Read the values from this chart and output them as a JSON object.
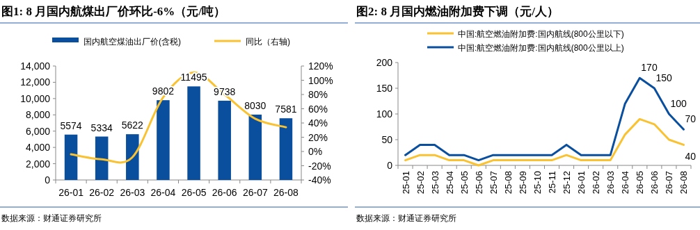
{
  "chart_data": [
    {
      "type": "bar",
      "title": "图1: 8 月国内航煤出厂价环比-6%（元/吨）",
      "categories": [
        "26-01",
        "26-02",
        "26-03",
        "26-04",
        "26-05",
        "26-06",
        "26-07",
        "26-08"
      ],
      "series": [
        {
          "name": "国内航空煤油出厂价(含税)",
          "color": "#0a4f9e",
          "values": [
            5574,
            5334,
            5622,
            9802,
            11495,
            9738,
            8030,
            7581
          ],
          "value_labels": [
            "5574",
            "5334",
            "5622",
            "9802",
            "11495",
            "9738",
            "8030",
            "7581"
          ]
        },
        {
          "name": "同比（右轴)",
          "type": "line",
          "axis": "y2",
          "color": "#f9c232",
          "values": [
            -4,
            -11,
            -8,
            76,
            111,
            80,
            46,
            34
          ]
        }
      ],
      "ylim": [
        0,
        14000
      ],
      "yticks": [
        {
          "value": 0,
          "label": "0"
        },
        {
          "value": 2000,
          "label": "2,000"
        },
        {
          "value": 4000,
          "label": "4,000"
        },
        {
          "value": 6000,
          "label": "6,000"
        },
        {
          "value": 8000,
          "label": "8,000"
        },
        {
          "value": 10000,
          "label": "10,000"
        },
        {
          "value": 12000,
          "label": "12,000"
        },
        {
          "value": 14000,
          "label": "14,000"
        }
      ],
      "y2lim": [
        -40,
        120
      ],
      "y2ticks": [
        {
          "value": -40,
          "label": "-40%"
        },
        {
          "value": -20,
          "label": "-20%"
        },
        {
          "value": 0,
          "label": "0%"
        },
        {
          "value": 20,
          "label": "20%"
        },
        {
          "value": 40,
          "label": "40%"
        },
        {
          "value": 60,
          "label": "60%"
        },
        {
          "value": 80,
          "label": "80%"
        },
        {
          "value": 100,
          "label": "100%"
        },
        {
          "value": 120,
          "label": "120%"
        }
      ],
      "legend": "top",
      "grid": false,
      "annotations": [
        "数据来源：财通证券研究所"
      ]
    },
    {
      "type": "line",
      "title": "图2: 8 月国内燃油附加费下调（元/人）",
      "categories": [
        "25-01",
        "25-02",
        "25-03",
        "25-04",
        "25-05",
        "25-06",
        "25-07",
        "25-08",
        "25-09",
        "25-10",
        "25-11",
        "25-12",
        "26-01",
        "26-02",
        "26-03",
        "26-04",
        "26-05",
        "26-06",
        "26-07",
        "26-08"
      ],
      "series": [
        {
          "name": "中国:航空燃油附加费:国内航线(800公里以下)",
          "color": "#f9c232",
          "values": [
            10,
            20,
            20,
            10,
            10,
            0,
            10,
            10,
            10,
            10,
            10,
            20,
            10,
            10,
            10,
            60,
            90,
            80,
            50,
            40
          ],
          "value_labels": [
            null,
            null,
            null,
            null,
            null,
            null,
            null,
            null,
            null,
            null,
            null,
            null,
            null,
            null,
            null,
            null,
            null,
            null,
            null,
            "40"
          ]
        },
        {
          "name": "中国:航空燃油附加费:国内航线(800公里以上)",
          "color": "#0a4f9e",
          "values": [
            20,
            40,
            40,
            20,
            20,
            10,
            20,
            20,
            20,
            20,
            20,
            40,
            20,
            20,
            20,
            120,
            170,
            150,
            100,
            70
          ],
          "value_labels": [
            null,
            null,
            null,
            null,
            null,
            null,
            null,
            null,
            null,
            null,
            null,
            null,
            null,
            null,
            null,
            null,
            "170",
            "150",
            "100",
            "70"
          ]
        }
      ],
      "ylim": [
        0,
        200
      ],
      "yticks": [
        0,
        50,
        100,
        150,
        200
      ],
      "legend": "top",
      "grid": false,
      "annotations": [
        "数据来源：财通证券研究所"
      ]
    }
  ]
}
